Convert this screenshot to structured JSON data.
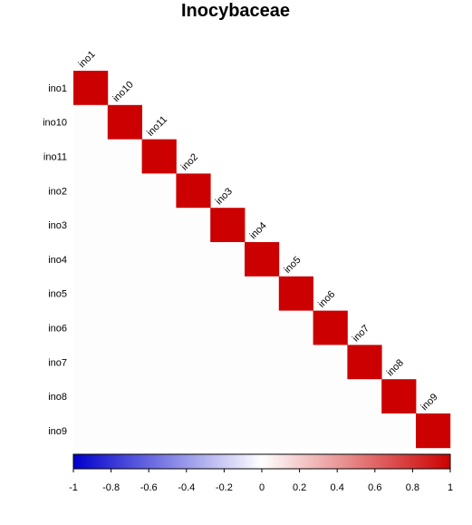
{
  "chart_data": {
    "type": "heatmap",
    "title": "Inocybaceae",
    "layout": "lower-triangle",
    "row_labels": [
      "ino1",
      "ino10",
      "ino11",
      "ino2",
      "ino3",
      "ino4",
      "ino5",
      "ino6",
      "ino7",
      "ino8",
      "ino9"
    ],
    "column_labels": [
      "ino1",
      "ino10",
      "ino11",
      "ino2",
      "ino3",
      "ino4",
      "ino5",
      "ino6",
      "ino7",
      "ino8",
      "ino9"
    ],
    "diagonal_value": 1,
    "off_diagonal_value": 0,
    "color_scale": {
      "range": [
        -1,
        1
      ],
      "colors": {
        "low": "#0000cc",
        "mid": "#ffffff",
        "high": "#cc0000"
      },
      "ticks": [
        "-1",
        "-0.8",
        "-0.6",
        "-0.4",
        "-0.2",
        "0",
        "0.2",
        "0.4",
        "0.6",
        "0.8",
        "1"
      ]
    },
    "legend_position": "bottom"
  }
}
